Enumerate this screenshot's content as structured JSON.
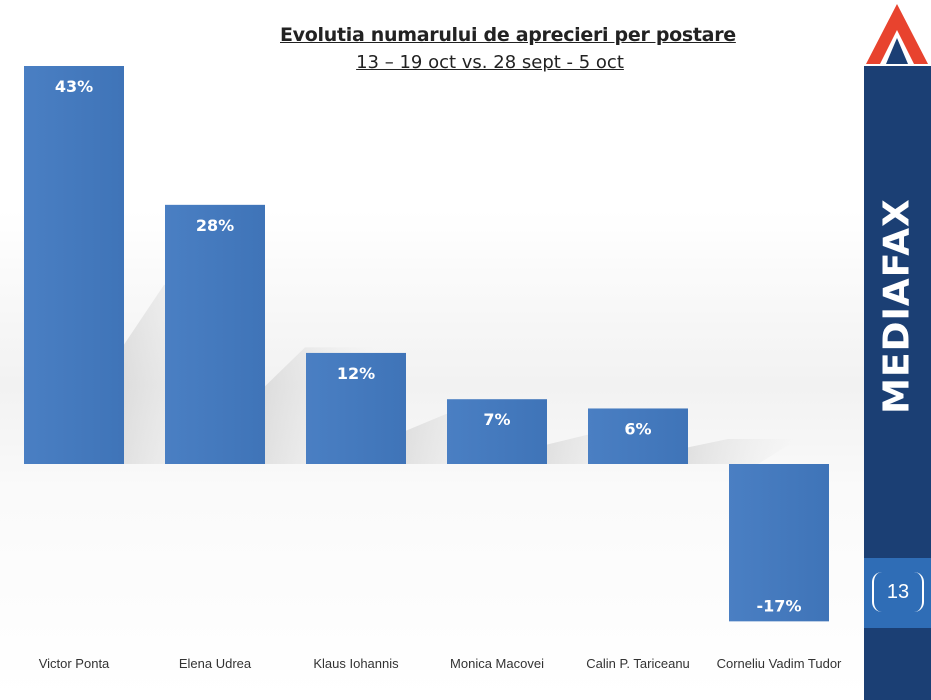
{
  "brand": {
    "name": "MEDIAFAX",
    "logo": "mediafax-triangle-logo"
  },
  "page_number": "13",
  "colors": {
    "bar": "#4a7fc3",
    "sidebar": "#1b3f74",
    "accent": "#e8432e"
  },
  "chart_data": {
    "type": "bar",
    "title": "Evolutia numarului de aprecieri per postare",
    "subtitle": "13 – 19 oct vs. 28 sept - 5 oct",
    "categories": [
      "Victor Ponta",
      "Elena Udrea",
      "Klaus Iohannis",
      "Monica Macovei",
      "Calin P. Tariceanu",
      "Corneliu Vadim Tudor"
    ],
    "values": [
      43,
      28,
      12,
      7,
      6,
      -17
    ],
    "value_labels": [
      "43%",
      "28%",
      "12%",
      "7%",
      "6%",
      "-17%"
    ],
    "unit": "%",
    "ylim": [
      -17,
      43
    ],
    "grid": false,
    "legend": "none"
  }
}
